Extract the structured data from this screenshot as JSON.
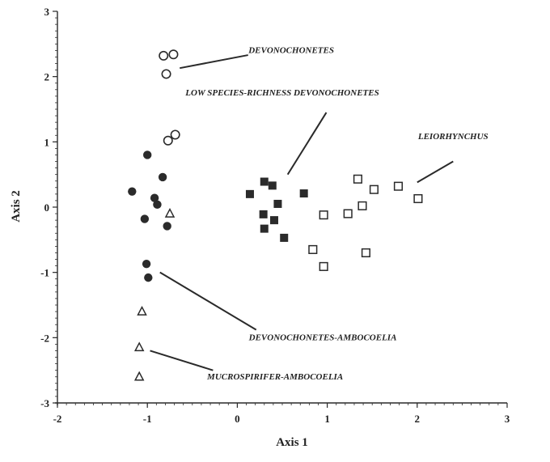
{
  "chart_data": {
    "type": "scatter",
    "xlabel": "Axis 1",
    "ylabel": "Axis 2",
    "xlim": [
      -2,
      3
    ],
    "ylim": [
      -3,
      3
    ],
    "x_ticks": [
      "-2",
      "-1",
      "0",
      "1",
      "2",
      "3"
    ],
    "y_ticks": [
      "3",
      "2",
      "1",
      "0",
      "-1",
      "-2",
      "-3"
    ],
    "grid": false,
    "series": [
      {
        "marker": "open-circle",
        "points": [
          {
            "x": -0.82,
            "y": 2.32
          },
          {
            "x": -0.71,
            "y": 2.34
          },
          {
            "x": -0.79,
            "y": 2.04
          },
          {
            "x": -0.77,
            "y": 1.02
          },
          {
            "x": -0.69,
            "y": 1.11
          }
        ]
      },
      {
        "marker": "filled-circle",
        "points": [
          {
            "x": -1.0,
            "y": 0.8
          },
          {
            "x": -0.83,
            "y": 0.46
          },
          {
            "x": -1.17,
            "y": 0.24
          },
          {
            "x": -0.92,
            "y": 0.14
          },
          {
            "x": -0.89,
            "y": 0.04
          },
          {
            "x": -1.03,
            "y": -0.18
          },
          {
            "x": -0.78,
            "y": -0.29
          },
          {
            "x": -1.01,
            "y": -0.87
          },
          {
            "x": -0.99,
            "y": -1.08
          }
        ]
      },
      {
        "marker": "filled-square",
        "points": [
          {
            "x": 0.14,
            "y": 0.2
          },
          {
            "x": 0.3,
            "y": 0.39
          },
          {
            "x": 0.39,
            "y": 0.33
          },
          {
            "x": 0.45,
            "y": 0.05
          },
          {
            "x": 0.29,
            "y": -0.11
          },
          {
            "x": 0.41,
            "y": -0.2
          },
          {
            "x": 0.3,
            "y": -0.33
          },
          {
            "x": 0.52,
            "y": -0.47
          },
          {
            "x": 0.74,
            "y": 0.21
          }
        ]
      },
      {
        "marker": "open-square",
        "points": [
          {
            "x": 1.34,
            "y": 0.43
          },
          {
            "x": 1.52,
            "y": 0.27
          },
          {
            "x": 1.79,
            "y": 0.32
          },
          {
            "x": 2.01,
            "y": 0.13
          },
          {
            "x": 1.39,
            "y": 0.02
          },
          {
            "x": 0.96,
            "y": -0.12
          },
          {
            "x": 1.23,
            "y": -0.1
          },
          {
            "x": 0.84,
            "y": -0.65
          },
          {
            "x": 0.96,
            "y": -0.91
          },
          {
            "x": 1.43,
            "y": -0.7
          }
        ]
      },
      {
        "marker": "open-triangle",
        "points": [
          {
            "x": -0.75,
            "y": -0.1
          },
          {
            "x": -1.06,
            "y": -1.6
          },
          {
            "x": -1.09,
            "y": -2.15
          },
          {
            "x": -1.09,
            "y": -2.6
          }
        ]
      }
    ],
    "annotations": [
      {
        "text": "DEVONOCHONETES",
        "x": 0.6,
        "y": 2.36,
        "line": [
          [
            -0.64,
            2.13
          ],
          [
            0.12,
            2.33
          ]
        ]
      },
      {
        "text": "LOW SPECIES-RICHNESS DEVONOCHONETES",
        "x": 0.5,
        "y": 1.71,
        "line": [
          [
            0.56,
            0.5
          ],
          [
            0.99,
            1.45
          ]
        ]
      },
      {
        "text": "LEIORHYNCHUS",
        "x": 2.4,
        "y": 1.04,
        "line": [
          [
            2.0,
            0.38
          ],
          [
            2.4,
            0.7
          ]
        ]
      },
      {
        "text": "DEVONOCHONETES-AMBOCOELIA",
        "x": 0.95,
        "y": -2.04,
        "line": [
          [
            -0.86,
            -1.0
          ],
          [
            0.21,
            -1.88
          ]
        ]
      },
      {
        "text": "MUCROSPIRIFER-AMBOCOELIA",
        "x": 0.42,
        "y": -2.64,
        "line": [
          [
            -0.97,
            -2.2
          ],
          [
            -0.27,
            -2.5
          ]
        ]
      }
    ]
  }
}
